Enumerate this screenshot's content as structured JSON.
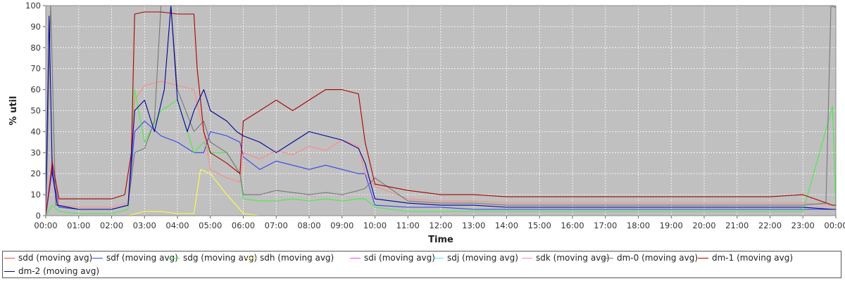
{
  "chart_data": {
    "type": "line",
    "title": "",
    "xlabel": "Time",
    "ylabel": "% util",
    "ylim": [
      0,
      100
    ],
    "yticks": [
      0,
      10,
      20,
      30,
      40,
      50,
      60,
      70,
      80,
      90,
      100
    ],
    "xlim": [
      0,
      24
    ],
    "xtick_values": [
      0,
      1,
      2,
      3,
      4,
      5,
      6,
      7,
      8,
      9,
      10,
      11,
      12,
      13,
      14,
      15,
      16,
      17,
      18,
      19,
      20,
      21,
      22,
      23,
      24
    ],
    "xtick_labels": [
      "00:00",
      "01:00",
      "02:00",
      "03:00",
      "04:00",
      "05:00",
      "06:00",
      "07:00",
      "08:00",
      "09:00",
      "10:00",
      "11:00",
      "12:00",
      "13:00",
      "14:00",
      "15:00",
      "16:00",
      "17:00",
      "18:00",
      "19:00",
      "20:00",
      "21:00",
      "22:00",
      "23:00",
      "00:00"
    ],
    "grid": true,
    "legend_position": "bottom",
    "series": [
      {
        "name": "sdd (moving avg)",
        "color": "#ff4444",
        "shown": false,
        "x": [
          0,
          0.2,
          0.4,
          1,
          2,
          2.5,
          2.7,
          3,
          3.5,
          4,
          4.5,
          4.8,
          5,
          5.5,
          5.9,
          6,
          6.5,
          7,
          7.5,
          8,
          8.5,
          9,
          9.5,
          9.7,
          10,
          11,
          12,
          13,
          14,
          15,
          16,
          17,
          18,
          19,
          20,
          21,
          22,
          23,
          23.9,
          24
        ],
        "y": [
          0,
          28,
          5,
          4,
          4,
          6,
          55,
          60,
          62,
          60,
          58,
          40,
          22,
          18,
          16,
          30,
          27,
          30,
          28,
          33,
          30,
          35,
          32,
          20,
          14,
          8,
          7,
          7,
          6,
          6,
          6,
          6,
          6,
          6,
          6,
          6,
          6,
          6,
          5,
          5
        ]
      },
      {
        "name": "sdf (moving avg)",
        "color": "#3344ee",
        "shown": true,
        "x": [
          0,
          0.2,
          0.4,
          1,
          2,
          2.5,
          2.7,
          3,
          3.5,
          4,
          4.5,
          4.8,
          5,
          5.5,
          5.9,
          6,
          6.5,
          7,
          7.5,
          8,
          8.5,
          9,
          9.5,
          9.7,
          10,
          11,
          12,
          13,
          14,
          15,
          16,
          17,
          18,
          19,
          20,
          21,
          22,
          23,
          23.9,
          24
        ],
        "y": [
          0,
          22,
          4,
          3,
          3,
          5,
          40,
          45,
          38,
          35,
          30,
          30,
          40,
          38,
          35,
          28,
          22,
          26,
          24,
          22,
          24,
          22,
          20,
          20,
          5,
          4,
          4,
          3,
          3,
          3,
          3,
          3,
          3,
          3,
          3,
          3,
          3,
          3,
          3,
          3
        ]
      },
      {
        "name": "sdg (moving avg)",
        "color": "#44ee44",
        "shown": true,
        "x": [
          0,
          0.2,
          0.4,
          1,
          2,
          2.5,
          2.7,
          3,
          3.5,
          4,
          4.5,
          4.8,
          5,
          5.5,
          5.9,
          6,
          6.5,
          7,
          7.5,
          8,
          8.5,
          9,
          9.5,
          9.7,
          10,
          11,
          12,
          13,
          14,
          15,
          16,
          17,
          18,
          19,
          20,
          21,
          22,
          23,
          23.9,
          24
        ],
        "y": [
          0,
          5,
          2,
          1,
          1,
          3,
          60,
          35,
          50,
          55,
          30,
          35,
          30,
          30,
          20,
          8,
          7,
          7,
          8,
          7,
          8,
          7,
          8,
          8,
          4,
          2,
          2,
          2,
          2,
          2,
          2,
          2,
          2,
          2,
          2,
          2,
          2,
          2,
          52,
          3
        ]
      },
      {
        "name": "sdh (moving avg)",
        "color": "#ffff44",
        "shown": true,
        "x": [
          0,
          0.5,
          2,
          2.5,
          3,
          3.5,
          4,
          4.5,
          4.7,
          5,
          5.5,
          5.9,
          6,
          6.5,
          7,
          8,
          9,
          10,
          12,
          14,
          16,
          18,
          20,
          22,
          24
        ],
        "y": [
          0,
          0,
          0,
          0,
          2,
          2,
          1,
          1,
          22,
          20,
          10,
          3,
          1,
          0,
          0,
          0,
          0,
          0,
          0,
          0,
          0,
          0,
          0,
          0,
          0
        ]
      },
      {
        "name": "sdi (moving avg)",
        "color": "#ee44ee",
        "shown": false,
        "x": [
          0,
          24
        ],
        "y": [
          0,
          0
        ]
      },
      {
        "name": "sdj (moving avg)",
        "color": "#44eeee",
        "shown": false,
        "x": [
          0,
          24
        ],
        "y": [
          0,
          0
        ]
      },
      {
        "name": "sdk (moving avg)",
        "color": "#ff8888",
        "shown": true,
        "x": [
          0,
          0.2,
          0.4,
          1,
          2,
          2.5,
          2.7,
          3,
          3.5,
          4,
          4.5,
          4.8,
          5,
          5.5,
          5.9,
          6,
          6.5,
          7,
          7.5,
          8,
          8.5,
          9,
          9.5,
          9.7,
          10,
          11,
          12,
          13,
          14,
          15,
          16,
          17,
          18,
          19,
          20,
          21,
          22,
          23,
          23.9,
          24
        ],
        "y": [
          0,
          28,
          5,
          4,
          4,
          6,
          55,
          62,
          64,
          62,
          60,
          40,
          22,
          18,
          16,
          30,
          27,
          31,
          29,
          33,
          31,
          36,
          33,
          20,
          14,
          8,
          7,
          7,
          6,
          6,
          6,
          6,
          6,
          6,
          6,
          6,
          6,
          6,
          5,
          5
        ]
      },
      {
        "name": "dm-0 (moving avg)",
        "color": "#777777",
        "shown": true,
        "x": [
          0,
          0.15,
          0.3,
          1,
          2,
          2.5,
          2.7,
          3,
          3.3,
          3.5,
          3.8,
          4,
          4.5,
          4.8,
          5,
          5.5,
          5.9,
          6,
          6.5,
          7,
          7.5,
          8,
          8.5,
          9,
          9.5,
          9.7,
          10,
          11,
          12,
          13,
          14,
          15,
          16,
          17,
          18,
          19,
          20,
          21,
          22,
          23,
          23.7,
          23.85,
          24
        ],
        "y": [
          0,
          100,
          5,
          3,
          3,
          5,
          30,
          32,
          45,
          100,
          100,
          60,
          40,
          45,
          35,
          30,
          20,
          10,
          10,
          12,
          11,
          10,
          11,
          10,
          12,
          13,
          18,
          7,
          6,
          6,
          5,
          5,
          5,
          5,
          5,
          5,
          5,
          5,
          5,
          5,
          6,
          100,
          99
        ]
      },
      {
        "name": "dm-1 (moving avg)",
        "color": "#aa0000",
        "shown": true,
        "x": [
          0,
          0.2,
          0.4,
          1,
          2,
          2.4,
          2.6,
          2.7,
          3,
          3.5,
          4,
          4.5,
          4.6,
          4.8,
          5,
          5.5,
          5.9,
          6,
          6.5,
          7,
          7.5,
          8,
          8.5,
          9,
          9.5,
          9.7,
          10,
          11,
          12,
          13,
          14,
          15,
          16,
          17,
          18,
          19,
          20,
          21,
          22,
          23,
          23.9,
          24
        ],
        "y": [
          0,
          25,
          8,
          8,
          8,
          10,
          30,
          96,
          97,
          97,
          96,
          96,
          70,
          40,
          30,
          25,
          20,
          45,
          50,
          55,
          50,
          55,
          60,
          60,
          58,
          35,
          15,
          12,
          10,
          10,
          9,
          9,
          9,
          9,
          9,
          9,
          9,
          9,
          9,
          10,
          5,
          5
        ]
      },
      {
        "name": "dm-2 (moving avg)",
        "color": "#000099",
        "shown": true,
        "x": [
          0,
          0.1,
          0.2,
          0.35,
          1,
          2,
          2.5,
          2.7,
          3,
          3.3,
          3.6,
          3.8,
          4,
          4.3,
          4.5,
          4.8,
          5,
          5.5,
          5.8,
          6,
          6.5,
          7,
          7.5,
          8,
          8.5,
          9,
          9.5,
          9.7,
          10,
          11,
          12,
          13,
          14,
          15,
          16,
          17,
          18,
          19,
          20,
          21,
          22,
          23,
          23.9,
          24
        ],
        "y": [
          0,
          95,
          20,
          5,
          3,
          3,
          5,
          50,
          55,
          40,
          60,
          100,
          55,
          40,
          50,
          60,
          50,
          45,
          40,
          38,
          35,
          30,
          35,
          40,
          38,
          36,
          32,
          25,
          8,
          6,
          5,
          5,
          4,
          4,
          4,
          4,
          4,
          4,
          4,
          4,
          4,
          4,
          3,
          3
        ]
      }
    ]
  }
}
